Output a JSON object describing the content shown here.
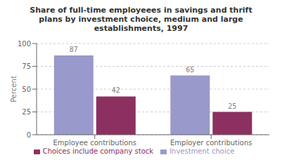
{
  "chart_data": {
    "type": "bar",
    "title": "Share of full-time employeees in savings and thrift\nplans by investment choice, medium and large\nestablishments, 1997",
    "categories": [
      "Employee contributions",
      "Employer contributions"
    ],
    "series": [
      {
        "name": "Investment choice",
        "color": "#9999CC",
        "values": [
          87,
          65
        ]
      },
      {
        "name": "Choices include company stock",
        "color": "#8B3060",
        "values": [
          42,
          25
        ]
      }
    ],
    "ylabel": "Percent",
    "ylim": [
      0,
      100
    ],
    "yticks": [
      0,
      25,
      50,
      75,
      100
    ],
    "grid": true,
    "legend": "bottom",
    "data_labels": true
  }
}
